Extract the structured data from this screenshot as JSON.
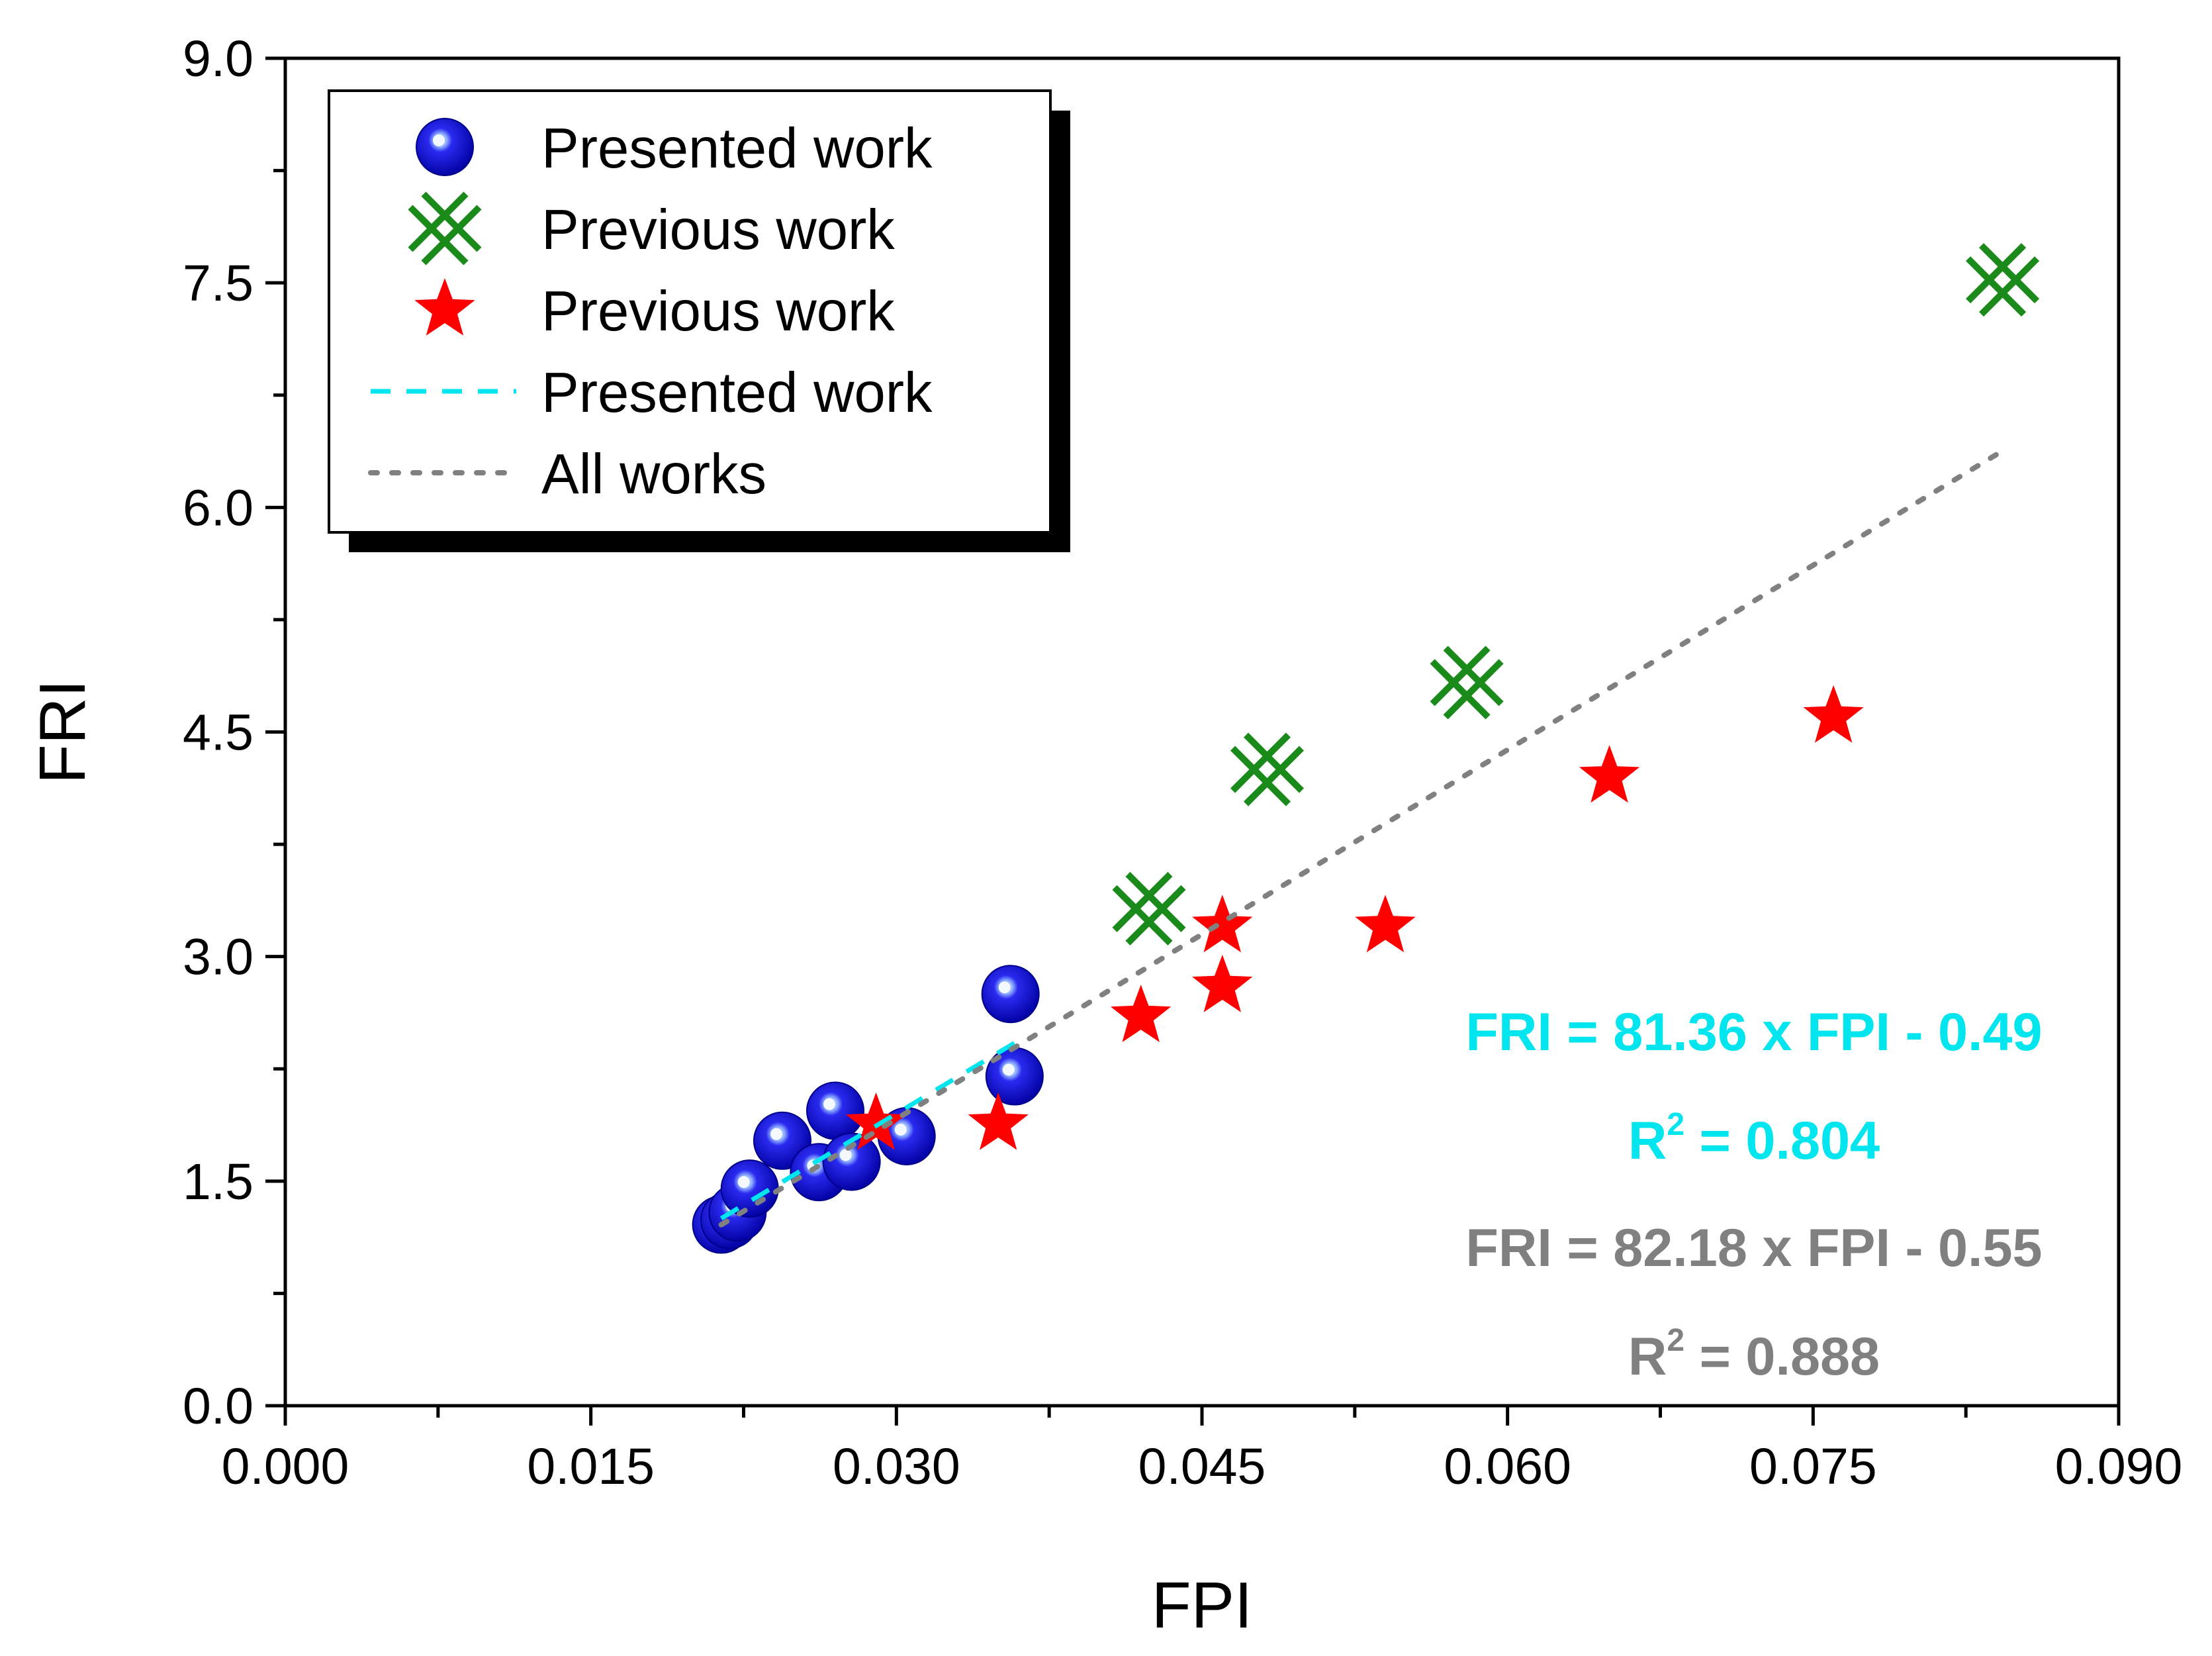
{
  "chart_data": {
    "type": "scatter",
    "xlabel": "FPI",
    "ylabel": "FRI",
    "xlim": [
      0.0,
      0.09
    ],
    "ylim": [
      0.0,
      9.0
    ],
    "xticks": [
      "0.000",
      "0.015",
      "0.030",
      "0.045",
      "0.060",
      "0.075",
      "0.090"
    ],
    "yticks": [
      "0.0",
      "1.5",
      "3.0",
      "4.5",
      "6.0",
      "7.5",
      "9.0"
    ],
    "series": [
      {
        "name": "Presented work",
        "marker": "sphere",
        "color": "#1111dd",
        "x": [
          0.0214,
          0.0218,
          0.0222,
          0.0228,
          0.0244,
          0.0262,
          0.027,
          0.0278,
          0.0305,
          0.0356,
          0.0358
        ],
        "y": [
          1.21,
          1.24,
          1.29,
          1.45,
          1.77,
          1.56,
          1.97,
          1.63,
          1.8,
          2.75,
          2.2
        ]
      },
      {
        "name": "Previous work",
        "marker": "crossed-x",
        "color": "#1a8a1a",
        "x": [
          0.0424,
          0.0482,
          0.058,
          0.0843
        ],
        "y": [
          3.32,
          4.25,
          4.83,
          7.52
        ]
      },
      {
        "name": "Previous work",
        "marker": "star",
        "color": "#ff0000",
        "x": [
          0.029,
          0.035,
          0.042,
          0.046,
          0.046,
          0.054,
          0.065,
          0.076
        ],
        "y": [
          1.88,
          1.88,
          2.6,
          3.2,
          2.8,
          3.2,
          4.2,
          4.6
        ]
      }
    ],
    "fit_lines": [
      {
        "name": "Presented work",
        "style": "dashed",
        "color": "#00e5ee",
        "slope": 81.36,
        "intercept": -0.49,
        "x_range": [
          0.0214,
          0.0358
        ]
      },
      {
        "name": "All works",
        "style": "dotted",
        "color": "#808080",
        "slope": 82.18,
        "intercept": -0.55,
        "x_range": [
          0.0214,
          0.0843
        ]
      }
    ],
    "legend": {
      "position": "top-left",
      "entries": [
        "Presented work",
        "Previous work",
        "Previous work",
        "Presented work",
        "All works"
      ]
    },
    "annotations": [
      {
        "text": "FRI = 81.36 x FPI - 0.49",
        "color": "#00e5ee"
      },
      {
        "text": "R",
        "sup": "2",
        "rest": " = 0.804",
        "color": "#00e5ee"
      },
      {
        "text": "FRI = 82.18 x FPI - 0.55",
        "color": "#808080"
      },
      {
        "text": "R",
        "sup": "2",
        "rest": " = 0.888",
        "color": "#808080"
      }
    ]
  }
}
